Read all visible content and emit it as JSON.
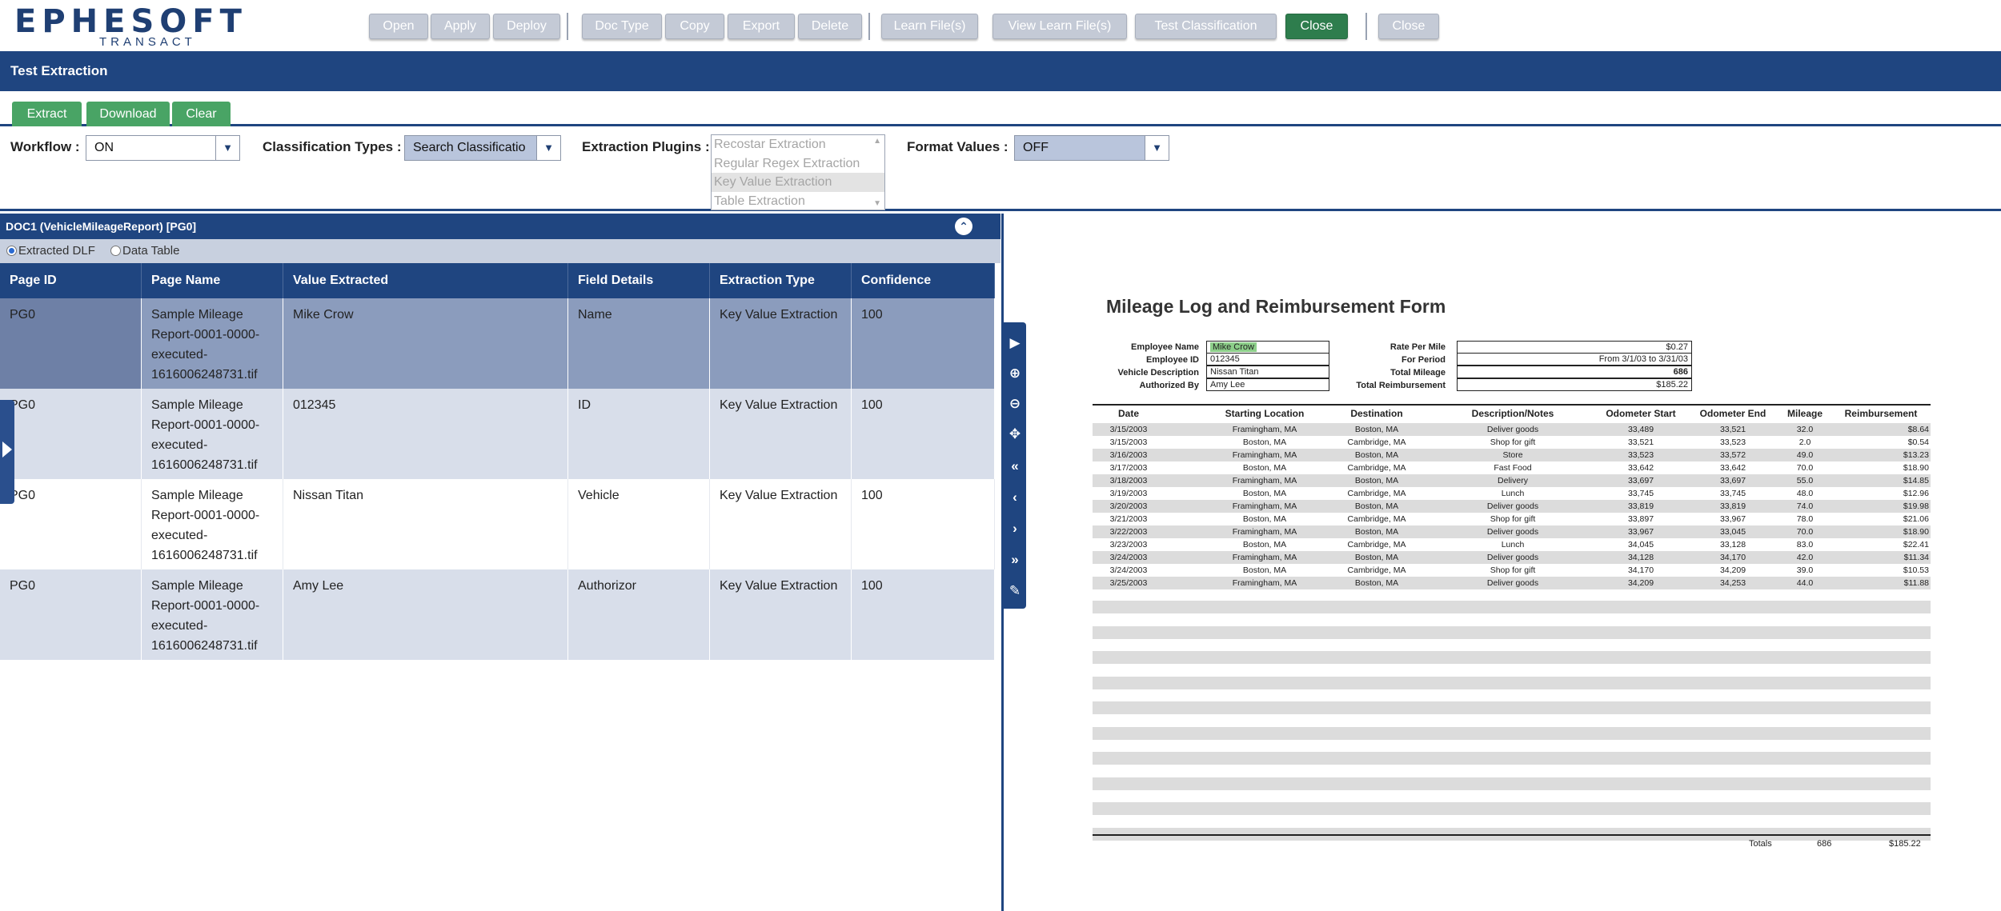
{
  "app": {
    "logo_text": "EPHESOFT",
    "logo_sub": "TRANSACT"
  },
  "toolbar": {
    "open": "Open",
    "apply": "Apply",
    "deploy": "Deploy",
    "doc_type": "Doc Type",
    "copy": "Copy",
    "export": "Export",
    "delete": "Delete",
    "learn_files": "Learn File(s)",
    "view_learn_files": "View Learn File(s)",
    "test_classification": "Test Classification",
    "close_green": "Close",
    "close": "Close"
  },
  "title": "Test Extraction",
  "actions": {
    "extract": "Extract",
    "download": "Download",
    "clear": "Clear"
  },
  "filters": {
    "workflow_label": "Workflow :",
    "workflow_value": "ON",
    "classification_label": "Classification Types :",
    "classification_value": "Search Classificatio",
    "plugins_label": "Extraction Plugins :",
    "plugins": [
      "Recostar Extraction",
      "Regular Regex Extraction",
      "Key Value Extraction",
      "Table Extraction"
    ],
    "format_label": "Format Values :",
    "format_value": "OFF"
  },
  "document": {
    "header": "DOC1 (VehicleMileageReport) [PG0]",
    "radio_dlf": "Extracted DLF",
    "radio_table": "Data Table"
  },
  "grid": {
    "columns": [
      "Page ID",
      "Page Name",
      "Value Extracted",
      "Field Details",
      "Extraction Type",
      "Confidence"
    ],
    "rows": [
      {
        "page_id": "PG0",
        "page_name": "Sample Mileage Report-0001-0000-executed-1616006248731.tif",
        "value": "Mike Crow",
        "field": "Name",
        "type": "Key Value Extraction",
        "confidence": "100"
      },
      {
        "page_id": "PG0",
        "page_name": "Sample Mileage Report-0001-0000-executed-1616006248731.tif",
        "value": "012345",
        "field": "ID",
        "type": "Key Value Extraction",
        "confidence": "100"
      },
      {
        "page_id": "PG0",
        "page_name": "Sample Mileage Report-0001-0000-executed-1616006248731.tif",
        "value": "Nissan Titan",
        "field": "Vehicle",
        "type": "Key Value Extraction",
        "confidence": "100"
      },
      {
        "page_id": "PG0",
        "page_name": "Sample Mileage Report-0001-0000-executed-1616006248731.tif",
        "value": "Amy Lee",
        "field": "Authorizor",
        "type": "Key Value Extraction",
        "confidence": "100"
      }
    ]
  },
  "form": {
    "title": "Mileage Log and Reimbursement Form",
    "employee_name_label": "Employee Name",
    "employee_name": "Mike Crow",
    "employee_id_label": "Employee ID",
    "employee_id": "012345",
    "vehicle_label": "Vehicle Description",
    "vehicle": "Nissan Titan",
    "authorized_label": "Authorized By",
    "authorized": "Amy Lee",
    "rate_label": "Rate Per Mile",
    "rate": "$0.27",
    "period_label": "For Period",
    "period": "From 3/1/03 to 3/31/03",
    "total_mileage_label": "Total Mileage",
    "total_mileage": "686",
    "total_reimb_label": "Total Reimbursement",
    "total_reimb": "$185.22",
    "columns": [
      "Date",
      "Starting Location",
      "Destination",
      "Description/Notes",
      "Odometer Start",
      "Odometer End",
      "Mileage",
      "Reimbursement"
    ],
    "rows": [
      [
        "3/15/2003",
        "Framingham, MA",
        "Boston, MA",
        "Deliver goods",
        "33,489",
        "33,521",
        "32.0",
        "$8.64"
      ],
      [
        "3/15/2003",
        "Boston, MA",
        "Cambridge, MA",
        "Shop for gift",
        "33,521",
        "33,523",
        "2.0",
        "$0.54"
      ],
      [
        "3/16/2003",
        "Framingham, MA",
        "Boston, MA",
        "Store",
        "33,523",
        "33,572",
        "49.0",
        "$13.23"
      ],
      [
        "3/17/2003",
        "Boston, MA",
        "Cambridge, MA",
        "Fast Food",
        "33,642",
        "33,642",
        "70.0",
        "$18.90"
      ],
      [
        "3/18/2003",
        "Framingham, MA",
        "Boston, MA",
        "Delivery",
        "33,697",
        "33,697",
        "55.0",
        "$14.85"
      ],
      [
        "3/19/2003",
        "Boston, MA",
        "Cambridge, MA",
        "Lunch",
        "33,745",
        "33,745",
        "48.0",
        "$12.96"
      ],
      [
        "3/20/2003",
        "Framingham, MA",
        "Boston, MA",
        "Deliver goods",
        "33,819",
        "33,819",
        "74.0",
        "$19.98"
      ],
      [
        "3/21/2003",
        "Boston, MA",
        "Cambridge, MA",
        "Shop for gift",
        "33,897",
        "33,967",
        "78.0",
        "$21.06"
      ],
      [
        "3/22/2003",
        "Framingham, MA",
        "Boston, MA",
        "Deliver goods",
        "33,967",
        "33,045",
        "70.0",
        "$18.90"
      ],
      [
        "3/23/2003",
        "Boston, MA",
        "Cambridge, MA",
        "Lunch",
        "34,045",
        "33,128",
        "83.0",
        "$22.41"
      ],
      [
        "3/24/2003",
        "Framingham, MA",
        "Boston, MA",
        "Deliver goods",
        "34,128",
        "34,170",
        "42.0",
        "$11.34"
      ],
      [
        "3/24/2003",
        "Boston, MA",
        "Cambridge, MA",
        "Shop for gift",
        "34,170",
        "34,209",
        "39.0",
        "$10.53"
      ],
      [
        "3/25/2003",
        "Framingham, MA",
        "Boston, MA",
        "Deliver goods",
        "34,209",
        "34,253",
        "44.0",
        "$11.88"
      ]
    ],
    "totals_label": "Totals",
    "totals_mileage": "686",
    "totals_reimb": "$185.22"
  }
}
